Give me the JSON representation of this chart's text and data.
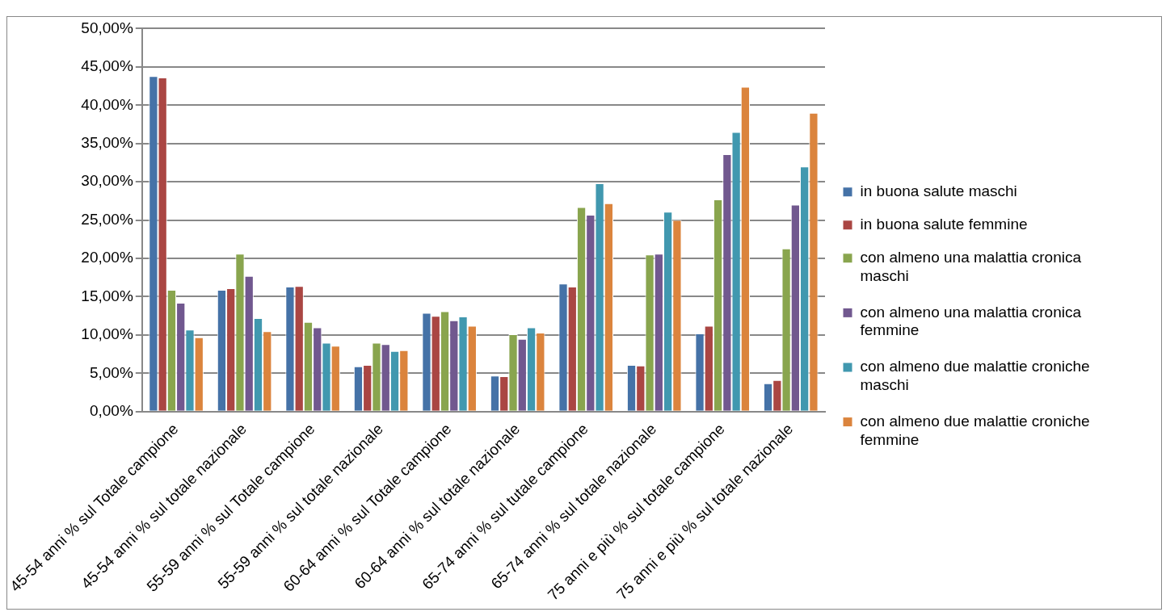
{
  "chart_data": {
    "type": "bar",
    "categories": [
      "45-54 anni % sul Totale campione",
      "45-54 anni % sul totale nazionale",
      "55-59 anni % sul Totale campione",
      "55-59 anni % sul totale nazionale",
      "60-64 anni % sul Totale campione",
      "60-64 anni % sul totale nazionale",
      "65-74 anni % sul tutale campione",
      "65-74 anni % sul totale nazionale",
      "75 anni e più % sul totale campione",
      "75 anni e più % sul totale nazionale"
    ],
    "series": [
      {
        "name": "in buona salute maschi",
        "color": "#4572a7",
        "values": [
          43.8,
          15.9,
          16.3,
          5.9,
          12.9,
          4.7,
          16.7,
          6.1,
          10.2,
          3.7
        ]
      },
      {
        "name": "in buona salute femmine",
        "color": "#aa4643",
        "values": [
          43.6,
          16.1,
          16.4,
          6.1,
          12.5,
          4.6,
          16.3,
          6.0,
          11.2,
          4.1
        ]
      },
      {
        "name": "con almeno una malattia cronica maschi",
        "color": "#89a54e",
        "values": [
          15.9,
          20.6,
          11.7,
          9.0,
          13.1,
          10.1,
          26.7,
          20.5,
          27.7,
          21.3
        ]
      },
      {
        "name": "con almeno una malattia cronica femmine",
        "color": "#71588f",
        "values": [
          14.2,
          17.7,
          11.0,
          8.8,
          11.9,
          9.5,
          25.7,
          20.6,
          33.6,
          27.0
        ]
      },
      {
        "name": "con almeno due malattie croniche maschi",
        "color": "#4198af",
        "values": [
          10.7,
          12.2,
          9.0,
          7.9,
          12.4,
          11.0,
          29.8,
          26.1,
          36.5,
          32.0
        ]
      },
      {
        "name": "con almeno due malattie croniche femmine",
        "color": "#db843d",
        "values": [
          9.7,
          10.5,
          8.6,
          8.0,
          11.2,
          10.3,
          27.2,
          25.0,
          42.4,
          39.0
        ]
      }
    ],
    "ylim": [
      0,
      50
    ],
    "yticks": [
      {
        "value": 0,
        "label": "0,00%"
      },
      {
        "value": 5,
        "label": "5,00%"
      },
      {
        "value": 10,
        "label": "10,00%"
      },
      {
        "value": 15,
        "label": "15,00%"
      },
      {
        "value": 20,
        "label": "20,00%"
      },
      {
        "value": 25,
        "label": "25,00%"
      },
      {
        "value": 30,
        "label": "30,00%"
      },
      {
        "value": 35,
        "label": "35,00%"
      },
      {
        "value": 40,
        "label": "40,00%"
      },
      {
        "value": 45,
        "label": "45,00%"
      },
      {
        "value": 50,
        "label": "50,00%"
      }
    ],
    "grid": "y",
    "legend": "right"
  }
}
